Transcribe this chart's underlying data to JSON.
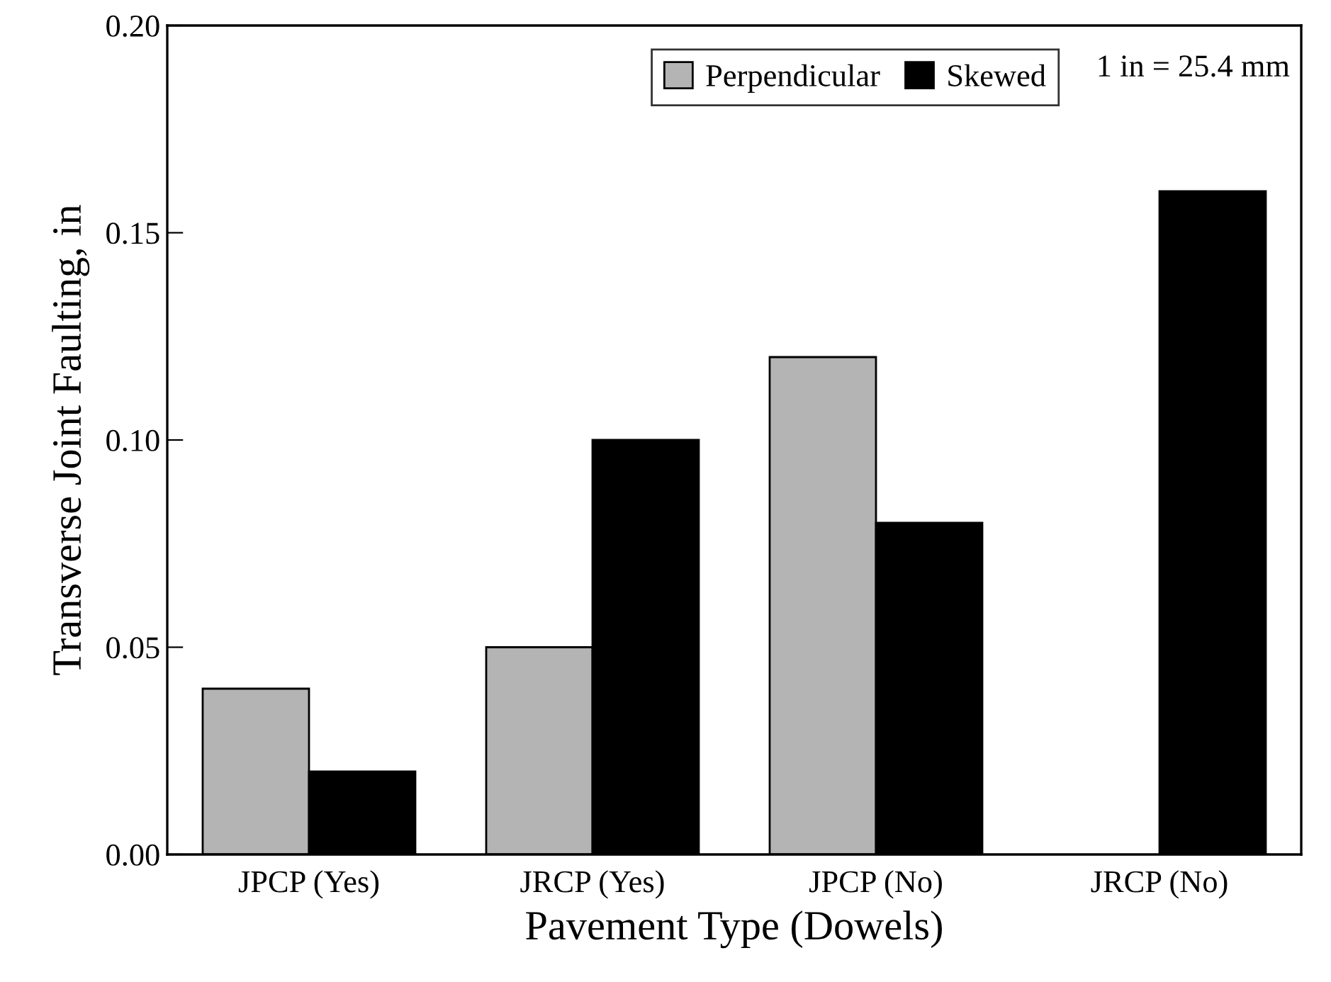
{
  "chart_data": {
    "type": "bar",
    "xlabel": "Pavement Type (Dowels)",
    "ylabel": "Transverse Joint Faulting, in",
    "categories": [
      "JPCP (Yes)",
      "JRCP (Yes)",
      "JPCP (No)",
      "JRCP (No)"
    ],
    "series": [
      {
        "name": "Perpendicular",
        "color": "#b4b4b4",
        "values": [
          0.04,
          0.05,
          0.12,
          null
        ]
      },
      {
        "name": "Skewed",
        "color": "#000000",
        "values": [
          0.02,
          0.1,
          0.08,
          0.16
        ]
      }
    ],
    "ylim": [
      0,
      0.2
    ],
    "yticks": [
      {
        "value": 0,
        "label": "0.00"
      },
      {
        "value": 0.05,
        "label": "0.05"
      },
      {
        "value": 0.1,
        "label": "0.10"
      },
      {
        "value": 0.15,
        "label": "0.15"
      },
      {
        "value": 0.2,
        "label": "0.20"
      }
    ],
    "annotations": [
      "1 in = 25.4 mm"
    ],
    "legend": "top right",
    "grid": false
  }
}
